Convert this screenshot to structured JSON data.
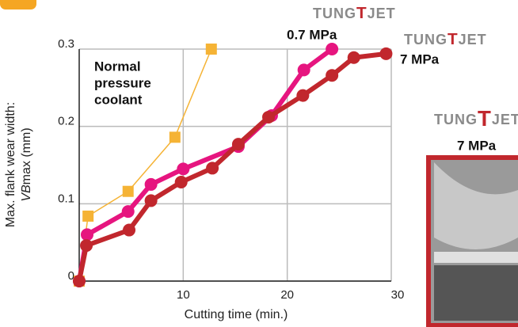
{
  "chart_data": {
    "type": "line",
    "x_label": "Cutting time (min.)",
    "y_label": [
      "Max. flank wear width:",
      "VB",
      "max (mm)"
    ],
    "annotation": [
      "Normal",
      "pressure",
      "coolant"
    ],
    "logo": [
      "TUNG",
      "T",
      "JET"
    ],
    "pressure_labels": [
      "0.7 MPa",
      "7 MPa",
      "7 MPa"
    ],
    "xlim": [
      0,
      30
    ],
    "ylim": [
      0,
      0.3
    ],
    "xticks": [
      10,
      20,
      30
    ],
    "yticks": [
      0,
      0.1,
      0.2,
      0.3
    ],
    "grid": true,
    "series": [
      {
        "color": "#f5b335",
        "marker": "square",
        "x": [
          0,
          0.85,
          4.7,
          9.2,
          12.7
        ],
        "values": [
          0,
          0.084,
          0.116,
          0.186,
          0.3
        ]
      },
      {
        "color": "#e6157f",
        "marker": "circle",
        "x": [
          0,
          0.76,
          4.7,
          6.9,
          10,
          15.3,
          18.5,
          21.6,
          24.3
        ],
        "values": [
          0,
          0.06,
          0.09,
          0.125,
          0.145,
          0.174,
          0.214,
          0.273,
          0.3
        ]
      },
      {
        "color": "#c1272d",
        "marker": "circle",
        "x": [
          0,
          0.69,
          4.8,
          6.9,
          9.8,
          12.8,
          15.3,
          18.2,
          21.5,
          24.3,
          26.4,
          29.5
        ],
        "values": [
          0,
          0.046,
          0.066,
          0.104,
          0.128,
          0.146,
          0.177,
          0.212,
          0.24,
          0.266,
          0.289,
          0.294
        ]
      }
    ]
  }
}
